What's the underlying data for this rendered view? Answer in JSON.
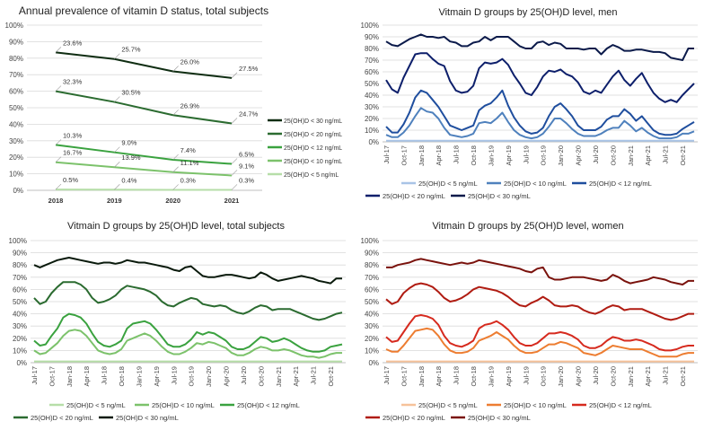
{
  "chart_data": [
    {
      "type": "line",
      "title": "Annual prevalence of vitamin D status, total subjects",
      "categories": [
        "2018",
        "2019",
        "2020",
        "2021"
      ],
      "ylim": [
        0,
        100
      ],
      "yticks": [
        "0%",
        "10%",
        "20%",
        "30%",
        "40%",
        "50%",
        "60%",
        "70%",
        "80%",
        "90%",
        "100%"
      ],
      "grid": true,
      "legend": "right",
      "series": [
        {
          "name": "25(OH)D < 30 ng/mL",
          "color": "#0f2d12",
          "values": [
            83.5,
            79.5,
            72.0,
            68.0
          ],
          "labels": [
            "23.6%",
            "25.7%",
            "26.0%",
            "27.5%"
          ]
        },
        {
          "name": "25(OH)D < 20 ng/mL",
          "color": "#2b6b30",
          "values": [
            60.0,
            53.5,
            45.5,
            40.5
          ],
          "labels": [
            "32.3%",
            "30.5%",
            "26.9%",
            "24.7%"
          ]
        },
        {
          "name": "25(OH)D < 12 ng/mL",
          "color": "#3aa23f",
          "values": [
            27.5,
            23.0,
            18.5,
            16.0
          ],
          "labels": [
            "10.3%",
            "9.0%",
            "7.4%",
            "6.5%"
          ]
        },
        {
          "name": "25(OH)D < 10 ng/mL",
          "color": "#7cc26b",
          "values": [
            17.0,
            14.0,
            11.0,
            9.0
          ],
          "labels": [
            "16.7%",
            "13.9%",
            "11.1%",
            "9.1%"
          ]
        },
        {
          "name": "25(OH)D < 5 ng/mL",
          "color": "#b6dea8",
          "values": [
            0.5,
            0.4,
            0.3,
            0.3
          ],
          "labels": [
            "0.5%",
            "0.4%",
            "0.3%",
            "0.3%"
          ]
        }
      ]
    },
    {
      "type": "line",
      "title": "Vitmain D groups by 25(OH)D level, men",
      "months_start": "Jul-17",
      "xticks": [
        "Jul-17",
        "Oct-17",
        "Jan-18",
        "Apr-18",
        "Jul-18",
        "Oct-18",
        "Jan-19",
        "Apr-19",
        "Jul-19",
        "Oct-19",
        "Jan-20",
        "Apr-20",
        "Jul-20",
        "Oct-20",
        "Jan-21",
        "Apr-21",
        "Jul-21",
        "Oct-21"
      ],
      "ylim": [
        0,
        100
      ],
      "yticks": [
        "0%",
        "10%",
        "20%",
        "30%",
        "40%",
        "50%",
        "60%",
        "70%",
        "80%",
        "90%",
        "100%"
      ],
      "grid": true,
      "legend": "bottom",
      "series": [
        {
          "name": "25(OH)D < 5 ng/mL",
          "color": "#a9c4e6",
          "values": [
            1,
            1,
            1,
            1,
            1,
            1,
            1,
            1,
            1,
            1,
            1,
            1,
            1,
            1,
            1,
            1,
            1,
            1,
            1,
            1,
            1,
            1,
            1,
            1,
            1,
            1,
            1,
            1,
            1,
            1,
            1,
            1,
            1,
            1,
            1,
            1,
            1,
            1,
            1,
            1,
            1,
            1,
            1,
            1,
            1,
            1,
            1,
            1,
            1,
            1,
            1,
            1,
            1,
            1
          ]
        },
        {
          "name": "25(OH)D < 10 ng/mL",
          "color": "#4f81bd",
          "values": [
            6,
            4,
            4,
            8,
            14,
            22,
            29,
            26,
            25,
            20,
            12,
            6,
            5,
            4,
            5,
            7,
            16,
            17,
            16,
            20,
            25,
            17,
            10,
            6,
            4,
            3,
            4,
            7,
            13,
            20,
            20,
            16,
            11,
            7,
            5,
            5,
            5,
            7,
            10,
            12,
            12,
            18,
            14,
            9,
            12,
            8,
            5,
            3,
            3,
            3,
            4,
            7,
            7,
            9
          ]
        },
        {
          "name": "25(OH)D < 12 ng/mL",
          "color": "#1f4e9e",
          "values": [
            13,
            8,
            8,
            15,
            25,
            38,
            44,
            42,
            36,
            30,
            22,
            14,
            12,
            10,
            12,
            14,
            27,
            31,
            33,
            38,
            44,
            31,
            21,
            14,
            9,
            7,
            8,
            12,
            22,
            30,
            33,
            28,
            22,
            14,
            10,
            10,
            10,
            13,
            19,
            22,
            22,
            28,
            24,
            18,
            22,
            16,
            10,
            7,
            6,
            6,
            7,
            11,
            14,
            17
          ]
        },
        {
          "name": "25(OH)D < 20 ng/mL",
          "color": "#0d1f6b",
          "values": [
            53,
            45,
            42,
            55,
            65,
            75,
            76,
            76,
            71,
            67,
            65,
            52,
            44,
            42,
            43,
            48,
            63,
            68,
            67,
            68,
            71,
            66,
            57,
            50,
            42,
            40,
            47,
            56,
            61,
            60,
            62,
            58,
            56,
            51,
            43,
            41,
            44,
            42,
            49,
            56,
            61,
            53,
            48,
            54,
            59,
            50,
            42,
            37,
            34,
            36,
            34,
            40,
            45,
            50
          ]
        },
        {
          "name": "25(OH)D < 30 ng/mL",
          "color": "#0b1a4a",
          "values": [
            86,
            83,
            82,
            85,
            88,
            90,
            92,
            90,
            90,
            89,
            90,
            86,
            85,
            82,
            82,
            85,
            86,
            90,
            87,
            90,
            90,
            90,
            86,
            82,
            80,
            80,
            85,
            86,
            83,
            85,
            84,
            80,
            80,
            80,
            79,
            80,
            80,
            75,
            80,
            83,
            81,
            78,
            78,
            79,
            79,
            78,
            77,
            77,
            76,
            72,
            71,
            70,
            80,
            80
          ]
        }
      ]
    },
    {
      "type": "line",
      "title": "Vitmain D groups by 25(OH)D level, total subjects",
      "months_start": "Jul-17",
      "xticks": [
        "Jul-17",
        "Oct-17",
        "Jan-18",
        "Apr-18",
        "Jul-18",
        "Oct-18",
        "Jan-19",
        "Apr-19",
        "Jul-19",
        "Oct-19",
        "Jan-20",
        "Apr-20",
        "Jul-20",
        "Oct-20",
        "Jan-21",
        "Apr-21",
        "Jul-21",
        "Oct-21"
      ],
      "ylim": [
        0,
        100
      ],
      "yticks": [
        "0%",
        "10%",
        "20%",
        "30%",
        "40%",
        "50%",
        "60%",
        "70%",
        "80%",
        "90%",
        "100%"
      ],
      "grid": true,
      "legend": "bottom",
      "series": [
        {
          "name": "25(OH)D < 5 ng/mL",
          "color": "#b6dea8",
          "values": [
            1,
            1,
            1,
            1,
            1,
            1,
            1,
            1,
            1,
            1,
            1,
            1,
            1,
            1,
            1,
            1,
            1,
            1,
            1,
            1,
            1,
            1,
            1,
            1,
            1,
            1,
            1,
            1,
            1,
            1,
            1,
            1,
            1,
            1,
            1,
            1,
            1,
            1,
            1,
            1,
            1,
            1,
            1,
            1,
            1,
            1,
            1,
            1,
            1,
            1,
            1,
            1,
            1,
            1
          ]
        },
        {
          "name": "25(OH)D < 10 ng/mL",
          "color": "#7cc26b",
          "values": [
            10,
            7,
            8,
            12,
            16,
            22,
            26,
            27,
            26,
            22,
            16,
            10,
            8,
            7,
            8,
            11,
            18,
            20,
            22,
            24,
            22,
            18,
            13,
            9,
            7,
            7,
            9,
            12,
            16,
            15,
            17,
            16,
            14,
            12,
            8,
            6,
            6,
            8,
            11,
            13,
            12,
            10,
            10,
            11,
            10,
            8,
            6,
            5,
            5,
            4,
            5,
            7,
            8,
            8
          ]
        },
        {
          "name": "25(OH)D < 12 ng/mL",
          "color": "#3aa23f",
          "values": [
            18,
            14,
            15,
            22,
            28,
            37,
            40,
            39,
            37,
            32,
            24,
            17,
            14,
            13,
            15,
            18,
            28,
            32,
            33,
            34,
            32,
            27,
            21,
            15,
            13,
            13,
            15,
            19,
            25,
            23,
            25,
            24,
            21,
            18,
            13,
            11,
            11,
            13,
            17,
            21,
            20,
            17,
            18,
            20,
            18,
            15,
            12,
            10,
            9,
            9,
            10,
            13,
            14,
            15
          ]
        },
        {
          "name": "25(OH)D < 20 ng/mL",
          "color": "#2b6b30",
          "values": [
            53,
            48,
            50,
            57,
            62,
            66,
            66,
            66,
            64,
            60,
            53,
            49,
            50,
            52,
            55,
            60,
            63,
            62,
            61,
            60,
            58,
            55,
            50,
            47,
            46,
            49,
            51,
            53,
            52,
            48,
            47,
            46,
            47,
            46,
            43,
            41,
            40,
            42,
            45,
            47,
            46,
            43,
            44,
            44,
            44,
            42,
            40,
            38,
            36,
            35,
            36,
            38,
            40,
            41
          ]
        },
        {
          "name": "25(OH)D < 30 ng/mL",
          "color": "#0a1a0c",
          "values": [
            80,
            78,
            80,
            82,
            84,
            85,
            86,
            85,
            84,
            83,
            82,
            81,
            82,
            82,
            81,
            82,
            84,
            83,
            82,
            82,
            81,
            80,
            79,
            78,
            76,
            75,
            78,
            79,
            75,
            71,
            70,
            70,
            71,
            72,
            72,
            71,
            70,
            69,
            70,
            74,
            72,
            69,
            67,
            68,
            69,
            70,
            71,
            70,
            69,
            67,
            66,
            65,
            69,
            69
          ]
        }
      ]
    },
    {
      "type": "line",
      "title": "Vitmain D groups by 25(OH)D level, women",
      "months_start": "Jul-17",
      "xticks": [
        "Jul-17",
        "Oct-17",
        "Jan-18",
        "Apr-18",
        "Jul-18",
        "Oct-18",
        "Jan-19",
        "Apr-19",
        "Jul-19",
        "Oct-19",
        "Jan-20",
        "Apr-20",
        "Jul-20",
        "Oct-20",
        "Jan-21",
        "Apr-21",
        "Jul-21",
        "Oct-21"
      ],
      "ylim": [
        0,
        100
      ],
      "yticks": [
        "0%",
        "10%",
        "20%",
        "30%",
        "40%",
        "50%",
        "60%",
        "70%",
        "80%",
        "90%",
        "100%"
      ],
      "grid": true,
      "legend": "bottom",
      "series": [
        {
          "name": "25(OH)D < 5 ng/mL",
          "color": "#f6c29a",
          "values": [
            1,
            1,
            1,
            1,
            1,
            1,
            1,
            1,
            1,
            1,
            1,
            1,
            1,
            1,
            1,
            1,
            1,
            1,
            1,
            1,
            1,
            1,
            1,
            1,
            1,
            1,
            1,
            1,
            1,
            1,
            1,
            1,
            1,
            1,
            1,
            1,
            1,
            1,
            1,
            1,
            1,
            1,
            1,
            1,
            1,
            1,
            1,
            1,
            1,
            1,
            1,
            1,
            1,
            1
          ]
        },
        {
          "name": "25(OH)D < 10 ng/mL",
          "color": "#ed7d31",
          "values": [
            11,
            9,
            9,
            14,
            20,
            26,
            27,
            28,
            27,
            22,
            15,
            10,
            8,
            8,
            9,
            12,
            18,
            20,
            22,
            25,
            22,
            19,
            14,
            10,
            8,
            8,
            9,
            12,
            15,
            15,
            17,
            16,
            14,
            12,
            8,
            7,
            6,
            8,
            11,
            14,
            13,
            12,
            11,
            11,
            11,
            9,
            7,
            5,
            5,
            5,
            5,
            7,
            8,
            8
          ]
        },
        {
          "name": "25(OH)D < 12 ng/mL",
          "color": "#d62a1e",
          "values": [
            21,
            17,
            18,
            25,
            32,
            38,
            39,
            38,
            36,
            31,
            22,
            16,
            14,
            13,
            15,
            18,
            28,
            31,
            32,
            34,
            31,
            27,
            21,
            16,
            14,
            14,
            16,
            20,
            24,
            24,
            25,
            24,
            22,
            19,
            14,
            12,
            12,
            14,
            18,
            21,
            20,
            18,
            18,
            19,
            18,
            16,
            14,
            11,
            10,
            10,
            11,
            13,
            14,
            14
          ]
        },
        {
          "name": "25(OH)D < 20 ng/mL",
          "color": "#b01c12",
          "values": [
            52,
            48,
            50,
            57,
            61,
            64,
            65,
            64,
            62,
            58,
            53,
            50,
            51,
            53,
            56,
            60,
            62,
            61,
            60,
            59,
            57,
            54,
            50,
            47,
            46,
            49,
            51,
            54,
            51,
            47,
            46,
            46,
            47,
            46,
            43,
            41,
            40,
            42,
            45,
            47,
            46,
            43,
            44,
            44,
            44,
            42,
            40,
            38,
            36,
            35,
            36,
            38,
            40,
            40
          ]
        },
        {
          "name": "25(OH)D < 30 ng/mL",
          "color": "#7a120c",
          "values": [
            78,
            78,
            80,
            81,
            82,
            84,
            85,
            84,
            83,
            82,
            81,
            80,
            81,
            82,
            81,
            82,
            84,
            83,
            82,
            81,
            80,
            79,
            78,
            77,
            75,
            74,
            77,
            78,
            70,
            68,
            68,
            69,
            70,
            70,
            70,
            69,
            68,
            67,
            68,
            72,
            70,
            67,
            65,
            66,
            67,
            68,
            70,
            69,
            68,
            66,
            65,
            64,
            67,
            67
          ]
        }
      ]
    }
  ]
}
